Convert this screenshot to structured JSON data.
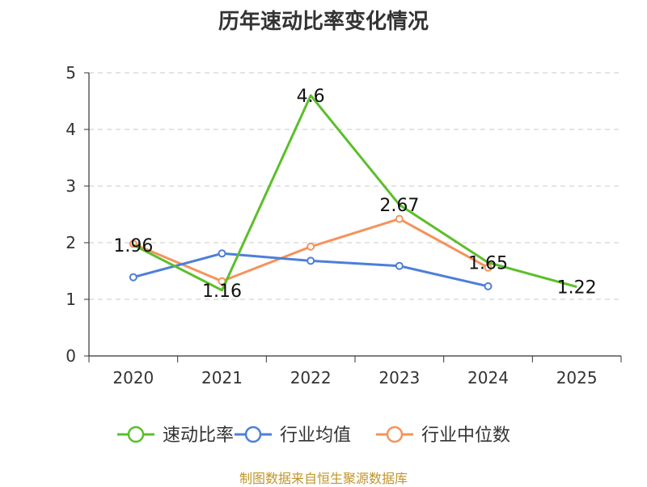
{
  "chart_data": {
    "type": "line",
    "title": "历年速动比率变化情况",
    "categories": [
      "2020",
      "2021",
      "2022",
      "2023",
      "2024",
      "2025"
    ],
    "ylim": [
      0,
      5
    ],
    "yticks": [
      0,
      1,
      2,
      3,
      4,
      5
    ],
    "grid": true,
    "legend_position": "bottom",
    "series": [
      {
        "name": "速动比率",
        "color": "#5bbf2a",
        "values": [
          1.96,
          1.16,
          4.6,
          2.67,
          1.65,
          1.22
        ],
        "labels": [
          "1.96",
          "1.16",
          "4.6",
          "2.67",
          "1.65",
          "1.22"
        ],
        "markers": false
      },
      {
        "name": "行业均值",
        "color": "#4d7fd8",
        "values": [
          1.39,
          1.81,
          1.68,
          1.59,
          1.23,
          null
        ],
        "markers": true
      },
      {
        "name": "行业中位数",
        "color": "#f4935b",
        "values": [
          1.98,
          1.32,
          1.93,
          2.42,
          1.56,
          null
        ],
        "markers": true
      }
    ]
  },
  "source": "制图数据来自恒生聚源数据库"
}
